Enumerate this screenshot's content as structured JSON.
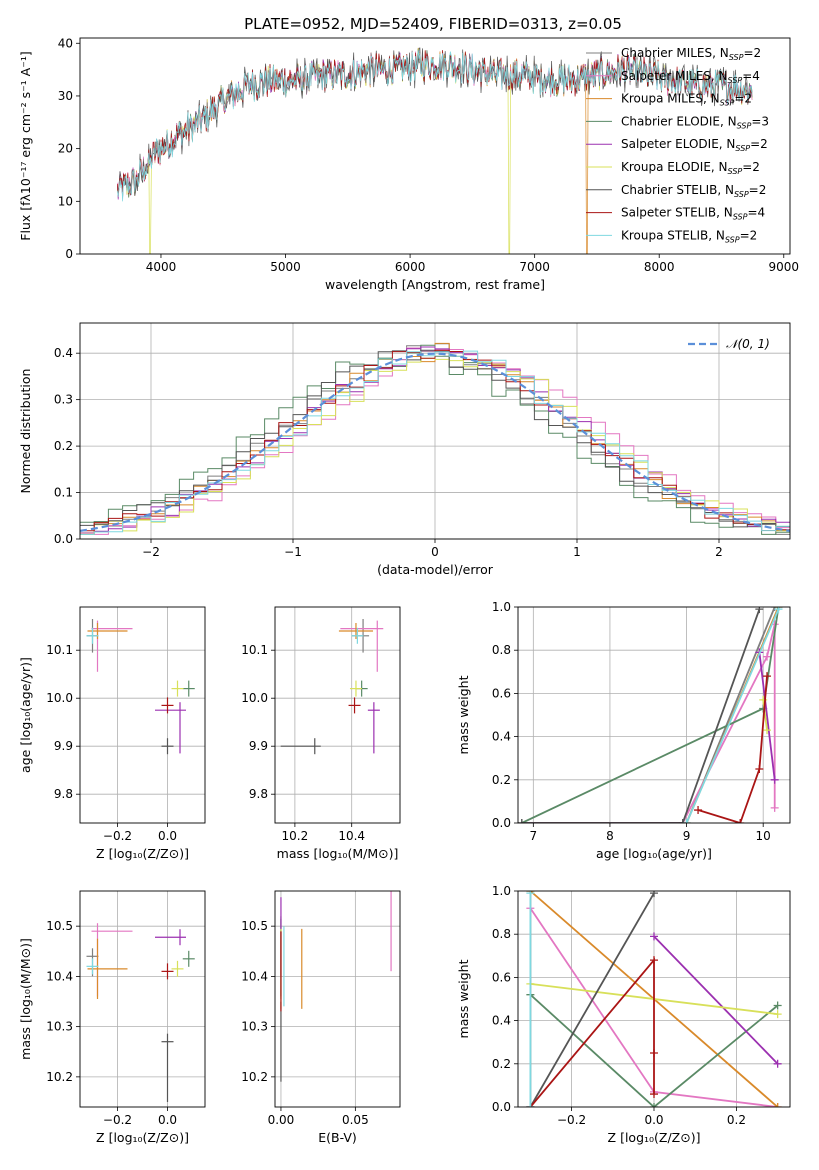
{
  "figure_title": "PLATE=0952, MJD=52409, FIBERID=0313, z=0.05",
  "colors": {
    "Chabrier MILES": "#7f7f7f",
    "Salpeter MILES": "#e377c2",
    "Kroupa MILES": "#d98a2b",
    "Chabrier ELODIE": "#5a8a66",
    "Salpeter ELODIE": "#9b30b0",
    "Kroupa ELODIE": "#d8e05a",
    "Chabrier STELIB": "#555555",
    "Salpeter STELIB": "#aa1515",
    "Kroupa STELIB": "#7fd8e0",
    "gaussian": "#5b8fd9",
    "grid": "#b0b0b0"
  },
  "chart_data": [
    {
      "type": "line",
      "id": "spectrum",
      "title": "PLATE=0952, MJD=52409, FIBERID=0313, z=0.05",
      "xlabel": "wavelength [Angstrom, rest frame]",
      "ylabel": "Flux [fλ10⁻¹⁷ erg cm⁻² s⁻¹ A⁻¹]",
      "xlim": [
        3350,
        9050
      ],
      "ylim": [
        0,
        41
      ],
      "xticks": [
        4000,
        5000,
        6000,
        7000,
        8000,
        9000
      ],
      "yticks": [
        0,
        10,
        20,
        30,
        40
      ],
      "grid": false,
      "legend_position": "top-right",
      "legend": [
        {
          "name": "Chabrier MILES",
          "text": "Chabrier MILES, N",
          "sub": "SSP",
          "tail": "=2"
        },
        {
          "name": "Salpeter MILES",
          "text": "Salpeter MILES, N",
          "sub": "SSP",
          "tail": "=4"
        },
        {
          "name": "Kroupa MILES",
          "text": "Kroupa MILES, N",
          "sub": "SSP",
          "tail": "=2"
        },
        {
          "name": "Chabrier ELODIE",
          "text": "Chabrier ELODIE, N",
          "sub": "SSP",
          "tail": "=3"
        },
        {
          "name": "Salpeter ELODIE",
          "text": "Salpeter ELODIE, N",
          "sub": "SSP",
          "tail": "=2"
        },
        {
          "name": "Kroupa ELODIE",
          "text": "Kroupa ELODIE, N",
          "sub": "SSP",
          "tail": "=2"
        },
        {
          "name": "Chabrier STELIB",
          "text": "Chabrier STELIB, N",
          "sub": "SSP",
          "tail": "=2"
        },
        {
          "name": "Salpeter STELIB",
          "text": "Salpeter STELIB, N",
          "sub": "SSP",
          "tail": "=4"
        },
        {
          "name": "Kroupa STELIB",
          "text": "Kroupa STELIB, N",
          "sub": "SSP",
          "tail": "=2"
        }
      ],
      "continuum": [
        [
          3650,
          12
        ],
        [
          3800,
          14
        ],
        [
          3950,
          19
        ],
        [
          4100,
          22
        ],
        [
          4300,
          25
        ],
        [
          4500,
          29
        ],
        [
          4700,
          32
        ],
        [
          4900,
          33
        ],
        [
          5100,
          33
        ],
        [
          5300,
          34
        ],
        [
          5500,
          34
        ],
        [
          5700,
          35
        ],
        [
          5900,
          35
        ],
        [
          6100,
          36
        ],
        [
          6300,
          36
        ],
        [
          6500,
          35
        ],
        [
          6700,
          34
        ],
        [
          6900,
          34
        ],
        [
          7100,
          33
        ],
        [
          7300,
          33
        ],
        [
          7500,
          34
        ],
        [
          7700,
          35
        ],
        [
          7900,
          34
        ],
        [
          8100,
          33
        ],
        [
          8300,
          32
        ],
        [
          8500,
          32
        ],
        [
          8750,
          31
        ]
      ],
      "x_range": [
        3650,
        8750
      ]
    },
    {
      "type": "histogram",
      "id": "residuals",
      "xlabel": "(data-model)/error",
      "ylabel": "Normed distribution",
      "xlim": [
        -2.5,
        2.5
      ],
      "ylim": [
        0,
        0.465
      ],
      "xticks": [
        -2,
        -1,
        0,
        1,
        2
      ],
      "yticks": [
        0.0,
        0.1,
        0.2,
        0.3,
        0.4
      ],
      "grid": true,
      "legend_position": "top-right",
      "legend": "𝒩(0, 1)",
      "bin_width": 0.1
    },
    {
      "type": "errorbar",
      "id": "age-vs-Z",
      "xlabel": "Z [log₁₀(Z/Z⊙)]",
      "ylabel": "age  [log₁₀(age/yr)]",
      "xlim": [
        -0.35,
        0.15
      ],
      "ylim": [
        9.74,
        10.19
      ],
      "xticks": [
        -0.2,
        0.0
      ],
      "yticks": [
        9.8,
        9.9,
        10.0,
        10.1
      ],
      "grid": true
    },
    {
      "type": "errorbar",
      "id": "age-vs-mass",
      "xlabel": "mass [log₁₀(M/M⊙)]",
      "xlim": [
        10.13,
        10.57
      ],
      "ylim": [
        9.74,
        10.19
      ],
      "xticks": [
        10.2,
        10.4
      ],
      "yticks": [
        9.8,
        9.9,
        10.0,
        10.1
      ],
      "grid": true
    },
    {
      "type": "line",
      "id": "mass-weight-vs-age",
      "xlabel": "age  [log₁₀(age/yr)]",
      "ylabel": "mass weight",
      "xlim": [
        6.8,
        10.35
      ],
      "ylim": [
        0,
        1
      ],
      "xticks": [
        7,
        8,
        9,
        10
      ],
      "yticks": [
        0.0,
        0.2,
        0.4,
        0.6,
        0.8,
        1.0
      ],
      "grid": true
    },
    {
      "type": "errorbar",
      "id": "mass-vs-Z",
      "xlabel": "Z [log₁₀(Z/Z⊙)]",
      "ylabel": "mass [log₁₀(M/M⊙)]",
      "xlim": [
        -0.35,
        0.15
      ],
      "ylim": [
        10.14,
        10.57
      ],
      "xticks": [
        -0.2,
        0.0
      ],
      "yticks": [
        10.2,
        10.3,
        10.4,
        10.5
      ],
      "grid": true
    },
    {
      "type": "errorbar",
      "id": "mass-vs-ebv",
      "xlabel": "E(B-V)",
      "xlim": [
        -0.004,
        0.08
      ],
      "ylim": [
        10.14,
        10.57
      ],
      "xticks": [
        0.0,
        0.05
      ],
      "xtick_labels": [
        "0.00",
        "0.05"
      ],
      "yticks": [
        10.2,
        10.3,
        10.4,
        10.5
      ],
      "grid": true
    },
    {
      "type": "line",
      "id": "mass-weight-vs-Z",
      "xlabel": "Z [log₁₀(Z/Z⊙)]",
      "ylabel": "mass weight",
      "xlim": [
        -0.33,
        0.33
      ],
      "ylim": [
        0,
        1
      ],
      "xticks": [
        -0.2,
        0.0,
        0.2
      ],
      "yticks": [
        0.0,
        0.2,
        0.4,
        0.6,
        0.8,
        1.0
      ],
      "grid": true
    }
  ],
  "models": [
    {
      "name": "Chabrier MILES",
      "Z": -0.3,
      "Z_err": [
        0.0,
        0.0
      ],
      "age": 10.13,
      "age_err": [
        0.035,
        0.035
      ],
      "mass": 10.44,
      "mass_err": [
        0.04,
        0.0
      ],
      "ebv": 0.0,
      "ebv_err": [
        0.0,
        0.0
      ]
    },
    {
      "name": "Salpeter MILES",
      "Z": -0.28,
      "Z_err": [
        0.02,
        0.14
      ],
      "age": 10.145,
      "age_err": [
        0.09,
        0.0
      ],
      "mass": 10.49,
      "mass_err": [
        0.13,
        0.0
      ],
      "ebv": 0.074,
      "ebv_err": [
        0.0,
        0.0
      ]
    },
    {
      "name": "Kroupa MILES",
      "Z": -0.28,
      "Z_err": [
        0.04,
        0.12
      ],
      "age": 10.14,
      "age_err": [
        0.0,
        0.0
      ],
      "mass": 10.415,
      "mass_err": [
        0.06,
        0.06
      ],
      "ebv": 0.014,
      "ebv_err": [
        0.0,
        0.0
      ]
    },
    {
      "name": "Chabrier ELODIE",
      "Z": 0.085,
      "Z_err": [
        0.0,
        0.0
      ],
      "age": 10.02,
      "age_err": [
        0.0,
        0.0
      ],
      "mass": 10.435,
      "mass_err": [
        0.0,
        0.0
      ],
      "ebv": 0.0,
      "ebv_err": [
        0.0,
        0.0
      ]
    },
    {
      "name": "Salpeter ELODIE",
      "Z": 0.05,
      "Z_err": [
        0.1,
        0.0
      ],
      "age": 9.975,
      "age_err": [
        0.09,
        0.0
      ],
      "mass": 10.478,
      "mass_err": [
        0.0,
        0.0
      ],
      "ebv": 0.0,
      "ebv_err": [
        0.0,
        0.0
      ]
    },
    {
      "name": "Kroupa ELODIE",
      "Z": 0.04,
      "Z_err": [
        0.0,
        0.0
      ],
      "age": 10.02,
      "age_err": [
        0.0,
        0.0
      ],
      "mass": 10.415,
      "mass_err": [
        0.0,
        0.0
      ],
      "ebv": 0.0,
      "ebv_err": [
        0.0,
        0.0
      ]
    },
    {
      "name": "Chabrier STELIB",
      "Z": 0.0,
      "Z_err": [
        0.02,
        0.0
      ],
      "age": 9.9,
      "age_err": [
        0.0,
        0.0
      ],
      "mass": 10.27,
      "mass_err": [
        0.12,
        0.0
      ],
      "ebv": 0.0,
      "ebv_err": [
        0.0,
        0.0
      ]
    },
    {
      "name": "Salpeter STELIB",
      "Z": 0.0,
      "Z_err": [
        0.0,
        0.0
      ],
      "age": 9.985,
      "age_err": [
        0.0,
        0.0
      ],
      "mass": 10.41,
      "mass_err": [
        0.0,
        0.0
      ],
      "ebv": 0.0,
      "ebv_err": [
        0.0,
        0.0
      ]
    },
    {
      "name": "Kroupa STELIB",
      "Z": -0.3,
      "Z_err": [
        0.0,
        0.0
      ],
      "age": 10.13,
      "age_err": [
        0.0,
        0.0
      ],
      "mass": 10.42,
      "mass_err": [
        0.0,
        0.0
      ],
      "ebv": 0.002,
      "ebv_err": [
        0.0,
        0.0
      ]
    }
  ],
  "mass_weight_vs_age": [
    {
      "name": "Chabrier MILES",
      "points": [
        [
          9.0,
          0.0
        ],
        [
          10.15,
          1.0
        ]
      ]
    },
    {
      "name": "Salpeter MILES",
      "points": [
        [
          6.85,
          0.0
        ],
        [
          8.95,
          0.0
        ],
        [
          10.05,
          0.77
        ],
        [
          10.15,
          0.92
        ],
        [
          10.15,
          0.07
        ]
      ]
    },
    {
      "name": "Kroupa MILES",
      "points": [
        [
          9.0,
          0.0
        ],
        [
          10.2,
          1.0
        ]
      ]
    },
    {
      "name": "Chabrier ELODIE",
      "points": [
        [
          6.85,
          0.0
        ],
        [
          10.0,
          0.53
        ],
        [
          10.2,
          1.0
        ]
      ]
    },
    {
      "name": "Salpeter ELODIE",
      "points": [
        [
          9.95,
          0.79
        ],
        [
          10.15,
          0.2
        ]
      ]
    },
    {
      "name": "Kroupa ELODIE",
      "points": [
        [
          10.0,
          0.57
        ],
        [
          10.05,
          0.43
        ]
      ]
    },
    {
      "name": "Chabrier STELIB",
      "points": [
        [
          6.85,
          0.0
        ],
        [
          8.95,
          0.0
        ],
        [
          9.95,
          0.99
        ]
      ]
    },
    {
      "name": "Salpeter STELIB",
      "points": [
        [
          9.15,
          0.06
        ],
        [
          9.7,
          0.0
        ],
        [
          9.95,
          0.25
        ],
        [
          10.05,
          0.68
        ]
      ]
    },
    {
      "name": "Kroupa STELIB",
      "points": [
        [
          9.0,
          0.0
        ],
        [
          10.2,
          0.99
        ]
      ]
    }
  ],
  "mass_weight_vs_Z": [
    {
      "name": "Chabrier MILES",
      "points": [
        [
          -0.3,
          0.0
        ],
        [
          -0.3,
          1.0
        ]
      ]
    },
    {
      "name": "Salpeter MILES",
      "points": [
        [
          -0.3,
          0.92
        ],
        [
          0.0,
          0.07
        ],
        [
          0.3,
          0.0
        ]
      ]
    },
    {
      "name": "Kroupa MILES",
      "points": [
        [
          -0.3,
          1.0
        ],
        [
          0.3,
          0.0
        ]
      ]
    },
    {
      "name": "Chabrier ELODIE",
      "points": [
        [
          -0.3,
          0.52
        ],
        [
          0.0,
          0.0
        ],
        [
          0.3,
          0.47
        ]
      ]
    },
    {
      "name": "Salpeter ELODIE",
      "points": [
        [
          0.0,
          0.79
        ],
        [
          0.3,
          0.2
        ]
      ]
    },
    {
      "name": "Kroupa ELODIE",
      "points": [
        [
          -0.3,
          0.57
        ],
        [
          0.3,
          0.43
        ]
      ]
    },
    {
      "name": "Chabrier STELIB",
      "points": [
        [
          -0.3,
          0.0
        ],
        [
          0.0,
          0.99
        ]
      ]
    },
    {
      "name": "Salpeter STELIB",
      "points": [
        [
          -0.3,
          0.0
        ],
        [
          0.0,
          0.68
        ],
        [
          0.0,
          0.25
        ],
        [
          0.0,
          0.06
        ]
      ]
    },
    {
      "name": "Kroupa STELIB",
      "points": [
        [
          -0.3,
          0.99
        ],
        [
          -0.3,
          0.0
        ]
      ]
    }
  ]
}
